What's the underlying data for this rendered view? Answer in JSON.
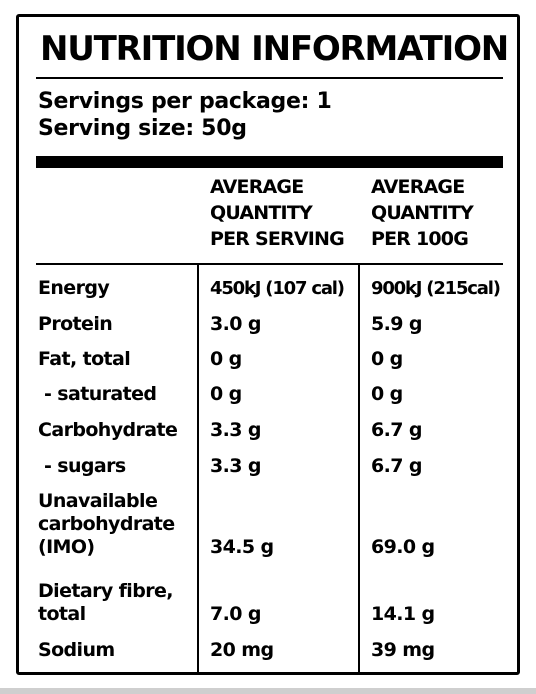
{
  "title": "NUTRITION INFORMATION",
  "servings_per_package": "Servings per package: 1",
  "serving_size": "Serving size: 50g",
  "columns": {
    "per_serving": [
      "AVERAGE",
      "QUANTITY",
      "PER SERVING"
    ],
    "per_100g": [
      "AVERAGE",
      "QUANTITY",
      "PER 100G"
    ]
  },
  "rows": [
    {
      "nutrient": [
        "Energy"
      ],
      "per_serving": "450kJ (107 cal)",
      "per_100g": "900kJ (215cal)"
    },
    {
      "nutrient": [
        "Protein"
      ],
      "per_serving": "3.0 g",
      "per_100g": "5.9 g"
    },
    {
      "nutrient": [
        "Fat, total"
      ],
      "per_serving": "0 g",
      "per_100g": "0 g"
    },
    {
      "nutrient": [
        "- saturated"
      ],
      "per_serving": "0 g",
      "per_100g": "0 g"
    },
    {
      "nutrient": [
        "Carbohydrate"
      ],
      "per_serving": "3.3 g",
      "per_100g": "6.7 g"
    },
    {
      "nutrient": [
        "- sugars"
      ],
      "per_serving": "3.3 g",
      "per_100g": "6.7 g"
    },
    {
      "nutrient": [
        "Unavailable",
        "carbohydrate",
        "(IMO)"
      ],
      "per_serving": "34.5 g",
      "per_100g": "69.0 g"
    },
    {
      "nutrient": [
        "Dietary fibre,",
        "total"
      ],
      "per_serving": "7.0 g",
      "per_100g": "14.1 g"
    },
    {
      "nutrient": [
        "Sodium"
      ],
      "per_serving": "20 mg",
      "per_100g": "39 mg"
    }
  ]
}
